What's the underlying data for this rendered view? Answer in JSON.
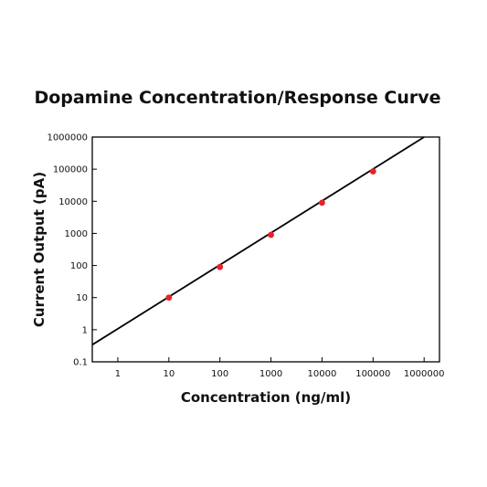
{
  "chart_data": {
    "type": "scatter",
    "title": "Dopamine Concentration/Response Curve",
    "xlabel": "Concentration (ng/ml)",
    "ylabel": "Current Output (pA)",
    "x_scale": "log",
    "y_scale": "log",
    "xlim": [
      0.316,
      2000000
    ],
    "ylim": [
      0.1,
      1000000
    ],
    "x_ticks": [
      "1",
      "10",
      "100",
      "1000",
      "10000",
      "100000",
      "1000000"
    ],
    "y_ticks": [
      "0.1",
      "1",
      "10",
      "100",
      "1000",
      "10000",
      "100000",
      "1000000"
    ],
    "grid": false,
    "legend": "none",
    "series": [
      {
        "points": [
          {
            "x": 10,
            "y": 10
          },
          {
            "x": 100,
            "y": 90
          },
          {
            "x": 1000,
            "y": 900
          },
          {
            "x": 10000,
            "y": 9000
          },
          {
            "x": 100000,
            "y": 85000
          }
        ],
        "marker_color": "#e8222a"
      }
    ],
    "fit_line": {
      "from": {
        "x": 0.316,
        "y": 0.34
      },
      "to": {
        "x": 1000000,
        "y": 1000000
      },
      "color": "#000000"
    }
  }
}
